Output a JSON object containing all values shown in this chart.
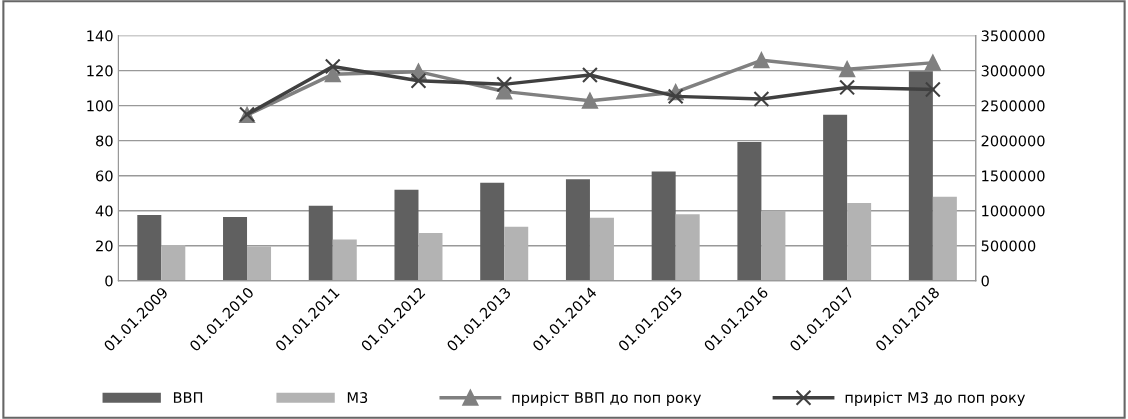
{
  "chart_data": {
    "type": "bar",
    "categories": [
      "01.01.2009",
      "01.01.2010",
      "01.01.2011",
      "01.01.2012",
      "01.01.2013",
      "01.01.2014",
      "01.01.2015",
      "01.01.2016",
      "01.01.2017",
      "01.01.2018"
    ],
    "series": [
      {
        "name": "ВВП",
        "axis": "y2",
        "color": "#606060",
        "values": [
          940000,
          910000,
          1070000,
          1300000,
          1400000,
          1450000,
          1560000,
          1980000,
          2370000,
          2990000
        ]
      },
      {
        "name": "М3",
        "axis": "y2",
        "color": "#b3b3b3",
        "values": [
          510000,
          490000,
          590000,
          680000,
          770000,
          900000,
          950000,
          1000000,
          1110000,
          1200000
        ]
      },
      {
        "name": "приріст ВВП до поп року",
        "type": "line",
        "axis": "y",
        "color": "#808080",
        "marker": "triangle",
        "values": [
          null,
          94.6,
          117.9,
          119.4,
          108.1,
          102.8,
          107.7,
          125.9,
          120.8,
          124.5
        ]
      },
      {
        "name": "приріст М3 до поп року",
        "type": "line",
        "axis": "y",
        "color": "#404040",
        "marker": "cross",
        "values": [
          null,
          95.0,
          122.4,
          114.2,
          112.2,
          117.5,
          105.3,
          103.8,
          110.4,
          109.2
        ]
      }
    ],
    "ylim": [
      0,
      140
    ],
    "yticks": [
      0,
      20,
      40,
      60,
      80,
      100,
      120,
      140
    ],
    "y2lim": [
      0,
      3500000
    ],
    "y2ticks": [
      0,
      500000,
      1000000,
      1500000,
      2000000,
      2500000,
      3000000,
      3500000
    ],
    "grid": "y",
    "legend": "bottom",
    "line_style": "solid"
  }
}
